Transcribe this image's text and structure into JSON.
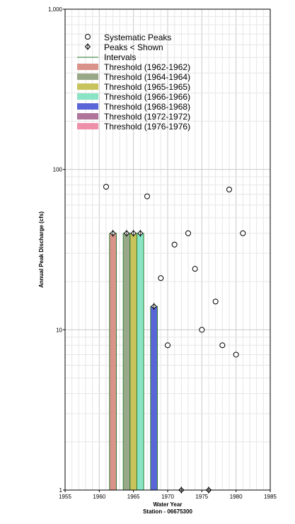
{
  "chart_data": {
    "type": "bar",
    "xlabel": "Water Year",
    "xlabel2": "Station - 06675300",
    "ylabel": "Annual Peak Discharge (cfs)",
    "xlim": [
      1955,
      1985
    ],
    "ylim": [
      1,
      1000
    ],
    "yscale": "log",
    "grid": true,
    "legend_position": "top-left",
    "x_ticks": [
      "1955",
      "1960",
      "1965",
      "1970",
      "1975",
      "1980",
      "1985"
    ],
    "y_ticks": [
      {
        "value": 1,
        "label": "1"
      },
      {
        "value": 10,
        "label": "10"
      },
      {
        "value": 100,
        "label": "100"
      },
      {
        "value": 1000,
        "label": "1,000"
      }
    ],
    "legend": [
      {
        "label": "Systematic Peaks",
        "kind": "circle"
      },
      {
        "label": "Peaks < Shown",
        "kind": "diamond"
      },
      {
        "label": "Intervals",
        "kind": "line",
        "color": "#2e7d32"
      },
      {
        "label": "Threshold (1962-1962)",
        "kind": "bar",
        "color": "#d9938a"
      },
      {
        "label": "Threshold (1964-1964)",
        "kind": "bar",
        "color": "#9aa88a"
      },
      {
        "label": "Threshold (1965-1965)",
        "kind": "bar",
        "color": "#c9c35c"
      },
      {
        "label": "Threshold (1966-1966)",
        "kind": "bar",
        "color": "#88e4c4"
      },
      {
        "label": "Threshold (1968-1968)",
        "kind": "bar",
        "color": "#5a66d8"
      },
      {
        "label": "Threshold (1972-1972)",
        "kind": "bar",
        "color": "#b0749a"
      },
      {
        "label": "Threshold (1976-1976)",
        "kind": "bar",
        "color": "#ee90a8"
      }
    ],
    "systematic_peaks": [
      {
        "x": 1961,
        "y": 78
      },
      {
        "x": 1967,
        "y": 68
      },
      {
        "x": 1969,
        "y": 21
      },
      {
        "x": 1970,
        "y": 8
      },
      {
        "x": 1971,
        "y": 34
      },
      {
        "x": 1973,
        "y": 40
      },
      {
        "x": 1974,
        "y": 24
      },
      {
        "x": 1975,
        "y": 10
      },
      {
        "x": 1977,
        "y": 15
      },
      {
        "x": 1978,
        "y": 8
      },
      {
        "x": 1979,
        "y": 75
      },
      {
        "x": 1980,
        "y": 7
      },
      {
        "x": 1981,
        "y": 40
      }
    ],
    "peaks_less_than_shown": [
      {
        "x": 1962,
        "y": 40
      },
      {
        "x": 1964,
        "y": 40
      },
      {
        "x": 1965,
        "y": 40
      },
      {
        "x": 1966,
        "y": 40
      },
      {
        "x": 1968,
        "y": 14
      },
      {
        "x": 1972,
        "y": 1
      },
      {
        "x": 1976,
        "y": 1
      }
    ],
    "threshold_bars": [
      {
        "year": 1962,
        "value": 40,
        "color": "#d9938a"
      },
      {
        "year": 1964,
        "value": 40,
        "color": "#9aa88a"
      },
      {
        "year": 1965,
        "value": 40,
        "color": "#c9c35c"
      },
      {
        "year": 1966,
        "value": 40,
        "color": "#88e4c4"
      },
      {
        "year": 1968,
        "value": 14,
        "color": "#5a66d8"
      }
    ],
    "interval_color": "#2e7d32"
  }
}
